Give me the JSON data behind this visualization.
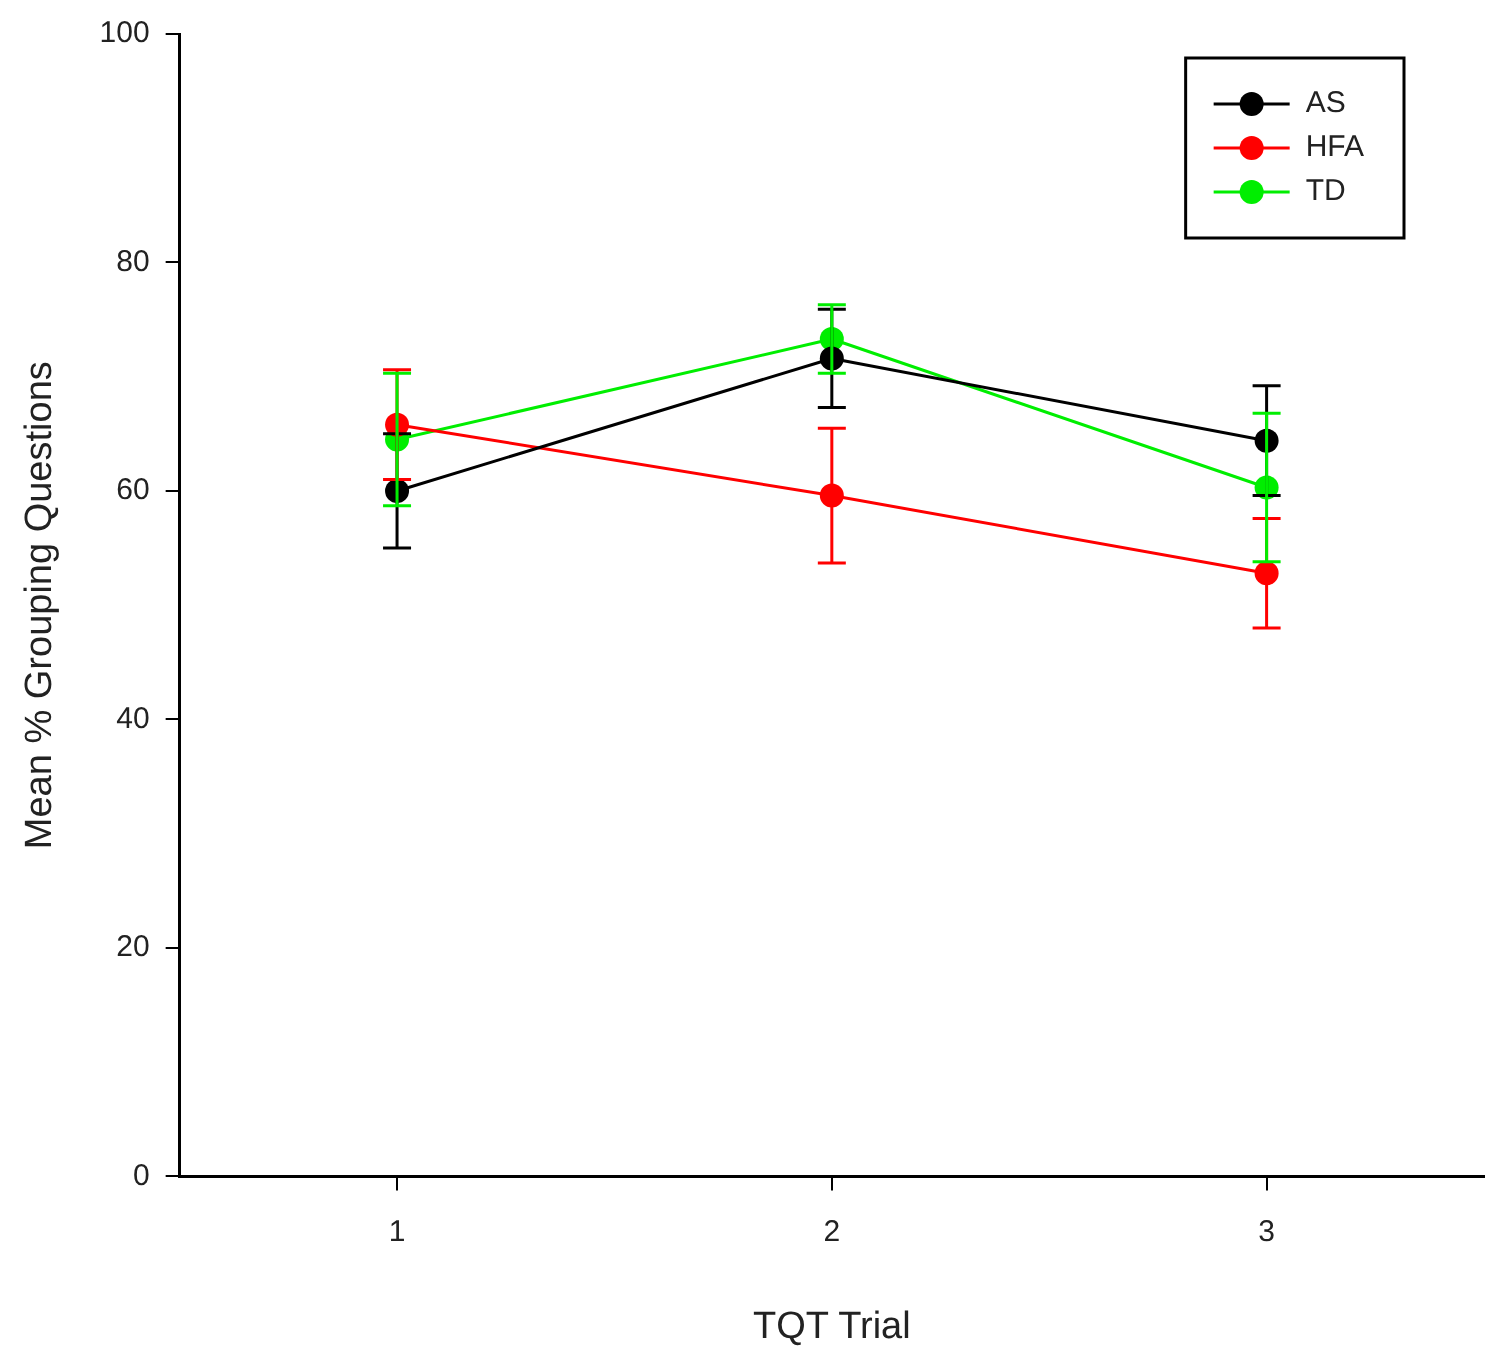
{
  "chart_data": {
    "type": "line",
    "xlabel": "TQT Trial",
    "ylabel": "Mean % Grouping Questions",
    "x": [
      1,
      2,
      3
    ],
    "xlim": [
      0.5,
      3.5
    ],
    "xticks": [
      1,
      2,
      3
    ],
    "ylim": [
      0,
      100
    ],
    "yticks": [
      0,
      20,
      40,
      60,
      80,
      100
    ],
    "grid": false,
    "legend": "top right",
    "marker": "circle",
    "series": [
      {
        "name": "AS",
        "color": "#000000",
        "values": [
          60,
          71.6,
          64.4
        ],
        "errors": [
          5,
          4.3,
          4.8
        ]
      },
      {
        "name": "HFA",
        "color": "#ff0000",
        "values": [
          65.8,
          59.6,
          52.8
        ],
        "errors": [
          4.8,
          5.9,
          4.8
        ]
      },
      {
        "name": "TD",
        "color": "#00ee00",
        "values": [
          64.5,
          73.3,
          60.3
        ],
        "errors": [
          5.8,
          3,
          6.5
        ]
      }
    ]
  }
}
